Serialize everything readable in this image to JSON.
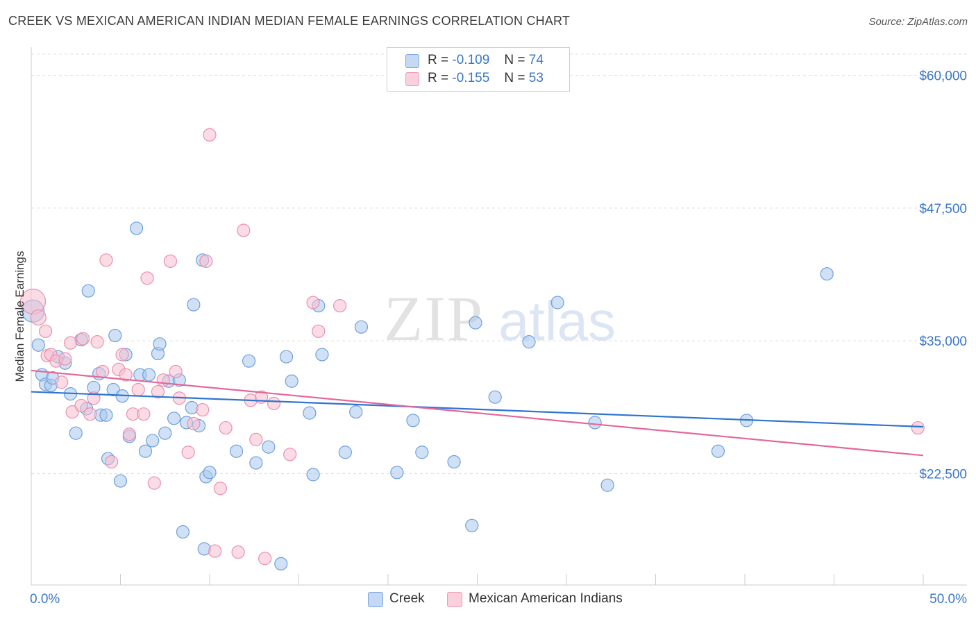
{
  "title": "CREEK VS MEXICAN AMERICAN INDIAN MEDIAN FEMALE EARNINGS CORRELATION CHART",
  "source": "Source: ZipAtlas.com",
  "watermark": {
    "zip": "ZIP",
    "atlas": "atlas"
  },
  "legend": {
    "rows": [
      {
        "r_label": "R =",
        "r_value": "-0.109",
        "n_label": "N =",
        "n_value": "74"
      },
      {
        "r_label": "R =",
        "r_value": "-0.155",
        "n_label": "N =",
        "n_value": "53"
      }
    ]
  },
  "bottom_legend": [
    {
      "label": "Creek"
    },
    {
      "label": "Mexican American Indians"
    }
  ],
  "colors": {
    "creek_fill": "#aac8ef",
    "creek_stroke": "#6f9fdc",
    "creek_line": "#2f74cf",
    "mexican_fill": "#f7bfd0",
    "mexican_stroke": "#eb8fae",
    "mexican_line": "#e4679a",
    "axis_label": "#3a77c9",
    "grid": "#dddddd"
  },
  "chart_data": {
    "type": "scatter",
    "title": "CREEK VS MEXICAN AMERICAN INDIAN MEDIAN FEMALE EARNINGS CORRELATION CHART",
    "xlabel": "",
    "ylabel": "Median Female Earnings",
    "xlim": [
      0,
      50
    ],
    "ylim": [
      12000,
      62000
    ],
    "x_tick_labels": [
      "0.0%",
      "50.0%"
    ],
    "y_ticks": [
      22500,
      35000,
      47500,
      60000
    ],
    "y_tick_labels": [
      "$22,500",
      "$35,000",
      "$47,500",
      "$60,000"
    ],
    "series": [
      {
        "name": "Creek",
        "r": -0.109,
        "n": 74,
        "trend": {
          "x0": 0,
          "y0": 30200,
          "x1": 50,
          "y1": 26900
        },
        "points": [
          [
            0.1,
            37800,
            16
          ],
          [
            0.4,
            34600,
            9
          ],
          [
            0.6,
            31800,
            9
          ],
          [
            0.8,
            30900,
            9
          ],
          [
            1.1,
            30800,
            9
          ],
          [
            1.2,
            31500,
            9
          ],
          [
            1.5,
            33500,
            9
          ],
          [
            1.9,
            32900,
            9
          ],
          [
            2.2,
            30000,
            9
          ],
          [
            2.5,
            26300,
            9
          ],
          [
            2.8,
            35100,
            9
          ],
          [
            3.1,
            28600,
            9
          ],
          [
            3.2,
            39700,
            9
          ],
          [
            3.5,
            30600,
            9
          ],
          [
            3.8,
            31900,
            9
          ],
          [
            3.9,
            28000,
            9
          ],
          [
            4.2,
            28000,
            9
          ],
          [
            4.3,
            23900,
            9
          ],
          [
            4.6,
            30400,
            9
          ],
          [
            4.7,
            35500,
            9
          ],
          [
            5.0,
            21800,
            9
          ],
          [
            5.1,
            29800,
            9
          ],
          [
            5.3,
            33700,
            9
          ],
          [
            5.5,
            26000,
            9
          ],
          [
            5.9,
            45600,
            9
          ],
          [
            6.1,
            31800,
            9
          ],
          [
            6.4,
            24600,
            9
          ],
          [
            6.6,
            31800,
            9
          ],
          [
            6.8,
            25600,
            9
          ],
          [
            7.1,
            33800,
            9
          ],
          [
            7.2,
            34700,
            9
          ],
          [
            7.5,
            26300,
            9
          ],
          [
            7.7,
            31200,
            9
          ],
          [
            8.0,
            27700,
            9
          ],
          [
            8.3,
            31300,
            9
          ],
          [
            8.5,
            17000,
            9
          ],
          [
            8.7,
            27300,
            9
          ],
          [
            9.0,
            28700,
            9
          ],
          [
            9.1,
            38400,
            9
          ],
          [
            9.4,
            27000,
            9
          ],
          [
            9.6,
            42600,
            9
          ],
          [
            9.7,
            15400,
            9
          ],
          [
            9.8,
            22200,
            9
          ],
          [
            10.0,
            22600,
            9
          ],
          [
            11.5,
            24600,
            9
          ],
          [
            12.2,
            33100,
            9
          ],
          [
            12.6,
            23500,
            9
          ],
          [
            13.3,
            25000,
            9
          ],
          [
            14.0,
            14000,
            9
          ],
          [
            14.3,
            33500,
            9
          ],
          [
            14.6,
            31200,
            9
          ],
          [
            15.6,
            28200,
            9
          ],
          [
            15.8,
            22400,
            9
          ],
          [
            16.1,
            38300,
            9
          ],
          [
            16.3,
            33700,
            9
          ],
          [
            17.6,
            24500,
            9
          ],
          [
            18.2,
            28300,
            9
          ],
          [
            18.5,
            36300,
            9
          ],
          [
            20.5,
            22600,
            9
          ],
          [
            21.4,
            27500,
            9
          ],
          [
            21.9,
            24500,
            9
          ],
          [
            23.7,
            23600,
            9
          ],
          [
            24.7,
            17600,
            9
          ],
          [
            24.9,
            36700,
            9
          ],
          [
            26.0,
            29700,
            9
          ],
          [
            27.9,
            34900,
            9
          ],
          [
            29.5,
            38600,
            9
          ],
          [
            31.6,
            27300,
            9
          ],
          [
            32.3,
            21400,
            9
          ],
          [
            38.5,
            24600,
            9
          ],
          [
            40.1,
            27500,
            9
          ],
          [
            44.6,
            41300,
            9
          ]
        ]
      },
      {
        "name": "Mexican American Indians",
        "r": -0.155,
        "n": 53,
        "trend": {
          "x0": 0,
          "y0": 32200,
          "x1": 50,
          "y1": 24200
        },
        "points": [
          [
            0.1,
            38700,
            18
          ],
          [
            0.4,
            37200,
            11
          ],
          [
            0.8,
            35900,
            9
          ],
          [
            0.9,
            33600,
            9
          ],
          [
            1.1,
            33700,
            9
          ],
          [
            1.4,
            33100,
            9
          ],
          [
            1.7,
            31100,
            9
          ],
          [
            1.9,
            33300,
            9
          ],
          [
            2.2,
            34800,
            9
          ],
          [
            2.3,
            28300,
            9
          ],
          [
            2.8,
            28900,
            9
          ],
          [
            2.9,
            35200,
            9
          ],
          [
            3.3,
            28100,
            9
          ],
          [
            3.5,
            29600,
            9
          ],
          [
            3.7,
            34900,
            9
          ],
          [
            4.0,
            32100,
            9
          ],
          [
            4.2,
            42600,
            9
          ],
          [
            4.5,
            23600,
            9
          ],
          [
            4.9,
            32300,
            9
          ],
          [
            5.1,
            33700,
            9
          ],
          [
            5.3,
            31800,
            9
          ],
          [
            5.5,
            26200,
            9
          ],
          [
            5.7,
            28100,
            9
          ],
          [
            6.0,
            30400,
            9
          ],
          [
            6.3,
            28100,
            9
          ],
          [
            6.5,
            40900,
            9
          ],
          [
            6.9,
            21600,
            9
          ],
          [
            7.1,
            30200,
            9
          ],
          [
            7.4,
            31300,
            9
          ],
          [
            7.8,
            42500,
            9
          ],
          [
            8.1,
            32100,
            9
          ],
          [
            8.3,
            29600,
            9
          ],
          [
            8.8,
            24500,
            9
          ],
          [
            9.1,
            27200,
            9
          ],
          [
            9.6,
            28500,
            9
          ],
          [
            9.8,
            42500,
            9
          ],
          [
            10.0,
            54400,
            9
          ],
          [
            10.3,
            15200,
            9
          ],
          [
            10.6,
            21100,
            9
          ],
          [
            10.9,
            26800,
            9
          ],
          [
            11.6,
            15100,
            9
          ],
          [
            11.9,
            45400,
            9
          ],
          [
            12.3,
            29400,
            9
          ],
          [
            12.6,
            25700,
            9
          ],
          [
            12.9,
            29700,
            9
          ],
          [
            13.1,
            14500,
            9
          ],
          [
            13.6,
            29100,
            9
          ],
          [
            14.5,
            24300,
            9
          ],
          [
            15.8,
            38600,
            9
          ],
          [
            16.1,
            35900,
            9
          ],
          [
            17.3,
            38300,
            9
          ],
          [
            49.7,
            26800,
            9
          ]
        ]
      }
    ]
  }
}
